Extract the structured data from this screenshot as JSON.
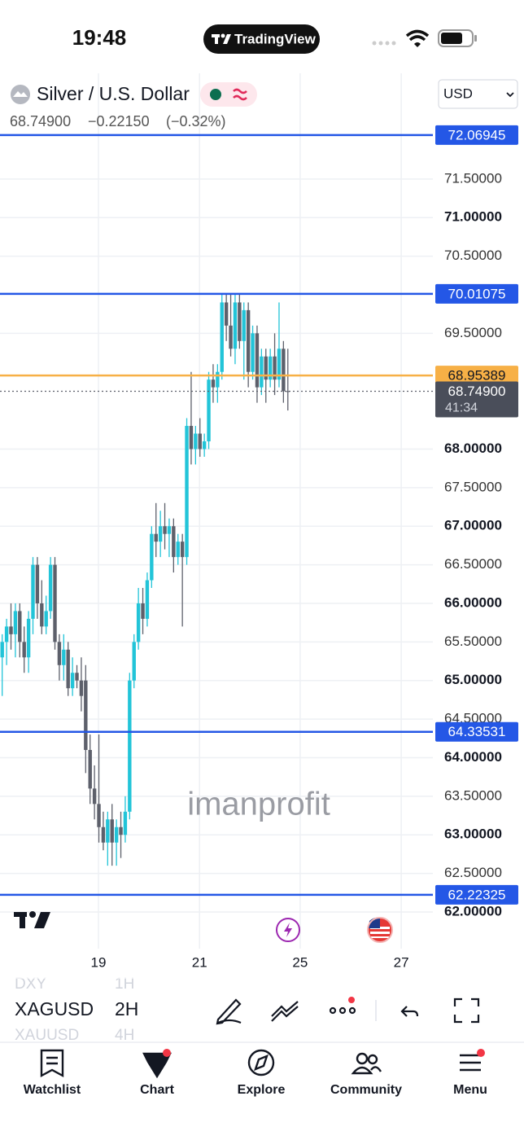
{
  "status_bar": {
    "time": "19:48",
    "app": "TradingView"
  },
  "header": {
    "symbol": "Silver / U.S. Dollar",
    "price": "68.74900",
    "change": "−0.22150",
    "change_percent": "(−0.32%)",
    "currency": "USD"
  },
  "chart_data": {
    "type": "candlestick",
    "open": [
      65.3,
      65.5,
      65.7,
      65.6,
      65.9,
      65.5,
      65.3,
      65.8,
      66.5,
      66.0,
      65.7,
      65.9,
      66.5,
      65.5,
      65.2,
      65.4,
      64.9,
      65.1,
      65.0,
      65.0,
      64.1,
      63.6,
      63.4,
      63.1,
      62.9,
      63.2,
      62.9,
      63.1,
      63.0,
      63.3,
      65.0,
      65.5,
      66.0,
      65.8,
      66.3,
      66.9,
      66.8,
      67.0,
      66.9,
      67.0,
      66.6,
      66.8,
      66.6,
      68.3,
      68.0,
      68.2,
      68.0,
      68.1,
      68.9,
      68.8,
      69.0,
      69.9,
      69.6,
      69.3,
      69.9,
      69.4,
      69.8,
      69.0,
      69.5,
      68.8,
      69.2,
      68.9,
      69.2,
      68.9,
      69.3,
      68.75
    ],
    "high": [
      65.6,
      65.8,
      66.0,
      66.0,
      66.0,
      65.7,
      65.9,
      66.6,
      66.6,
      66.3,
      66.1,
      66.6,
      66.6,
      65.6,
      65.6,
      65.5,
      65.3,
      65.2,
      65.3,
      65.2,
      64.3,
      63.9,
      64.3,
      63.3,
      63.3,
      63.4,
      63.2,
      63.3,
      63.5,
      65.1,
      65.6,
      66.2,
      66.2,
      66.4,
      67.0,
      67.3,
      67.2,
      67.3,
      67.1,
      67.1,
      66.9,
      66.9,
      68.4,
      69.0,
      68.3,
      68.4,
      68.2,
      69.0,
      69.1,
      69.1,
      70.0,
      70.0,
      70.0,
      70.0,
      70.0,
      69.9,
      69.9,
      69.6,
      69.6,
      69.3,
      69.3,
      69.3,
      69.5,
      69.9,
      69.4,
      69.3
    ],
    "low": [
      64.8,
      65.2,
      65.4,
      65.3,
      65.3,
      65.1,
      65.1,
      65.6,
      65.8,
      65.6,
      65.6,
      65.8,
      65.4,
      65.0,
      65.0,
      64.8,
      64.8,
      64.9,
      64.6,
      63.8,
      63.4,
      63.2,
      62.9,
      62.8,
      62.6,
      62.6,
      62.6,
      62.7,
      62.9,
      63.2,
      64.9,
      65.4,
      65.6,
      65.7,
      66.2,
      66.6,
      66.6,
      66.7,
      66.6,
      66.4,
      66.5,
      65.7,
      66.5,
      67.8,
      67.8,
      67.9,
      67.9,
      68.0,
      68.6,
      68.6,
      68.9,
      69.4,
      69.2,
      69.1,
      69.3,
      68.9,
      68.8,
      68.9,
      68.6,
      68.7,
      68.6,
      68.8,
      68.7,
      68.8,
      68.6,
      68.5
    ],
    "close": [
      65.5,
      65.7,
      65.6,
      65.9,
      65.5,
      65.3,
      65.8,
      66.5,
      66.0,
      65.7,
      65.9,
      66.5,
      65.5,
      65.2,
      65.4,
      64.9,
      65.1,
      65.0,
      64.8,
      64.1,
      63.6,
      63.4,
      63.1,
      62.9,
      63.2,
      62.9,
      63.1,
      63.0,
      63.3,
      65.0,
      65.5,
      66.0,
      65.8,
      66.3,
      66.9,
      66.8,
      67.0,
      66.9,
      67.0,
      66.6,
      66.8,
      66.6,
      68.3,
      68.0,
      68.2,
      68.0,
      68.1,
      68.9,
      68.8,
      69.0,
      69.9,
      69.6,
      69.3,
      69.9,
      69.4,
      69.8,
      69.0,
      69.5,
      68.8,
      69.2,
      68.9,
      69.2,
      68.9,
      69.3,
      68.75,
      68.749
    ],
    "up_color": "#22c4d8",
    "down_color": "#5d606b",
    "xlim": [
      -0.5,
      98
    ],
    "xticks": [
      {
        "value": 21.9,
        "label": "19"
      },
      {
        "value": 44.9,
        "label": "21"
      },
      {
        "value": 67.8,
        "label": "25"
      },
      {
        "value": 90.8,
        "label": "27"
      }
    ],
    "ylim": [
      61.525,
      72.87
    ],
    "yticks": [
      {
        "value": 62,
        "label": "62.00000"
      },
      {
        "value": 62.5,
        "label": "62.50000"
      },
      {
        "value": 63,
        "label": "63.00000"
      },
      {
        "value": 63.5,
        "label": "63.50000"
      },
      {
        "value": 64,
        "label": "64.00000"
      },
      {
        "value": 64.5,
        "label": "64.50000"
      },
      {
        "value": 65,
        "label": "65.00000"
      },
      {
        "value": 65.5,
        "label": "65.50000"
      },
      {
        "value": 66,
        "label": "66.00000"
      },
      {
        "value": 66.5,
        "label": "66.50000"
      },
      {
        "value": 67,
        "label": "67.00000"
      },
      {
        "value": 67.5,
        "label": "67.50000"
      },
      {
        "value": 68,
        "label": "68.00000"
      },
      {
        "value": 69.5,
        "label": "69.50000"
      },
      {
        "value": 70.5,
        "label": "70.50000"
      },
      {
        "value": 71,
        "label": "71.00000"
      },
      {
        "value": 71.5,
        "label": "71.50000"
      }
    ],
    "grid": true,
    "price_lines": [
      {
        "value": 72.06945,
        "color": "#2457e6",
        "text_color": "#ffffff"
      },
      {
        "value": 70.01075,
        "color": "#2457e6",
        "text_color": "#ffffff"
      },
      {
        "value": 68.95389,
        "color": "#f7b046",
        "text_color": "#131722"
      },
      {
        "value": 64.33531,
        "color": "#2457e6",
        "text_color": "#ffffff"
      },
      {
        "value": 62.22325,
        "color": "#2457e6",
        "text_color": "#ffffff"
      }
    ],
    "current_price": {
      "value": 68.749,
      "label": "68.74900"
    },
    "countdown": "41:34",
    "watermark": "imanprofit"
  },
  "toolbar": {
    "symbols": [
      {
        "name": "DXY",
        "interval": "1H"
      },
      {
        "name": "XAGUSD",
        "interval": "2H"
      },
      {
        "name": "XAUUSD",
        "interval": "4H"
      }
    ]
  },
  "nav": [
    "Watchlist",
    "Chart",
    "Explore",
    "Community",
    "Menu"
  ]
}
